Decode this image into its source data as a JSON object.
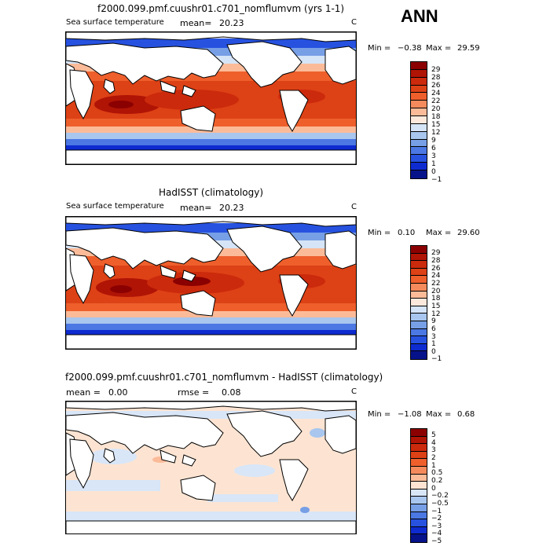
{
  "season": "ANN",
  "panels": [
    {
      "title": "f2000.099.pmf.cuushr01.c701_nomflumvm (yrs 1-1)",
      "variable": "Sea surface temperature",
      "mean_label": "mean=",
      "mean_value": "20.23",
      "units": "C",
      "min_label": "Min =",
      "min_value": "−0.38",
      "max_label": "Max =",
      "max_value": "29.59",
      "levels": [
        "29",
        "28",
        "26",
        "24",
        "22",
        "20",
        "18",
        "15",
        "12",
        "9",
        "6",
        "3",
        "1",
        "0",
        "−1"
      ],
      "colors": [
        "#8b0000",
        "#b01405",
        "#cc2a0c",
        "#dd4116",
        "#ee5f2c",
        "#f58a5c",
        "#fbbb99",
        "#fde8dc",
        "#d5e4f6",
        "#a8c6ee",
        "#779fe6",
        "#4b78e3",
        "#2752e0",
        "#0e2bd0",
        "#06128a"
      ]
    },
    {
      "title": "HadISST (climatology)",
      "variable": "Sea surface temperature",
      "mean_label": "mean=",
      "mean_value": "20.23",
      "units": "C",
      "min_label": "Min =",
      "min_value": "0.10",
      "max_label": "Max =",
      "max_value": "29.60",
      "levels": [
        "29",
        "28",
        "26",
        "24",
        "22",
        "20",
        "18",
        "15",
        "12",
        "9",
        "6",
        "3",
        "1",
        "0",
        "−1"
      ],
      "colors": [
        "#8b0000",
        "#b01405",
        "#cc2a0c",
        "#dd4116",
        "#ee5f2c",
        "#f58a5c",
        "#fbbb99",
        "#fde8dc",
        "#d5e4f6",
        "#a8c6ee",
        "#779fe6",
        "#4b78e3",
        "#2752e0",
        "#0e2bd0",
        "#06128a"
      ]
    },
    {
      "title": "f2000.099.pmf.cuushr01.c701_nomflumvm - HadISST (climatology)",
      "mean_label": "mean =",
      "mean_value": "0.00",
      "rmse_label": "rmse =",
      "rmse_value": "0.08",
      "units": "C",
      "min_label": "Min =",
      "min_value": "−1.08",
      "max_label": "Max =",
      "max_value": "0.68",
      "levels": [
        "5",
        "4",
        "3",
        "2",
        "1",
        "0.5",
        "0.2",
        "0",
        "−0.2",
        "−0.5",
        "−1",
        "−2",
        "−3",
        "−4",
        "−5"
      ],
      "colors": [
        "#8b0000",
        "#b01405",
        "#cc2a0c",
        "#dd4116",
        "#ee5f2c",
        "#f58a5c",
        "#fbbb99",
        "#fde4d2",
        "#d8e6f8",
        "#a8c6ee",
        "#779fe6",
        "#4b78e3",
        "#2752e0",
        "#0e2bd0",
        "#06128a"
      ]
    }
  ]
}
